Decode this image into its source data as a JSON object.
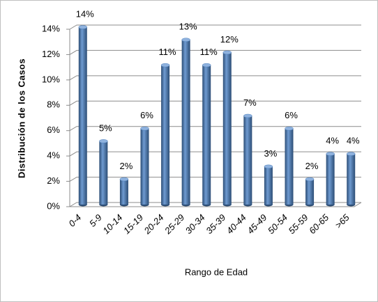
{
  "chart_data": {
    "type": "bar",
    "x_label": "Rango de Edad",
    "y_label": "Distribución de los Casos",
    "categories": [
      "0-4",
      "5-9",
      "10-14",
      "15-19",
      "20-24",
      "25-29",
      "30-34",
      "35-39",
      "40-44",
      "45-49",
      "50-54",
      "55-59",
      "60-65",
      ">65"
    ],
    "values": [
      14,
      5,
      2,
      6,
      11,
      13,
      11,
      12,
      7,
      3,
      6,
      2,
      4,
      4
    ],
    "value_labels": [
      "14%",
      "5%",
      "2%",
      "6%",
      "11%",
      "13%",
      "11%",
      "12%",
      "7%",
      "3%",
      "6%",
      "2%",
      "4%",
      "4%"
    ],
    "color": "#4f81bd",
    "ylim": [
      0,
      14
    ],
    "yticks": [
      {
        "value": 0,
        "label": "0%"
      },
      {
        "value": 2,
        "label": "2%"
      },
      {
        "value": 4,
        "label": "4%"
      },
      {
        "value": 6,
        "label": "6%"
      },
      {
        "value": 8,
        "label": "8%"
      },
      {
        "value": 10,
        "label": "10%"
      },
      {
        "value": 12,
        "label": "12%"
      },
      {
        "value": 14,
        "label": "14%"
      }
    ],
    "grid": true
  }
}
